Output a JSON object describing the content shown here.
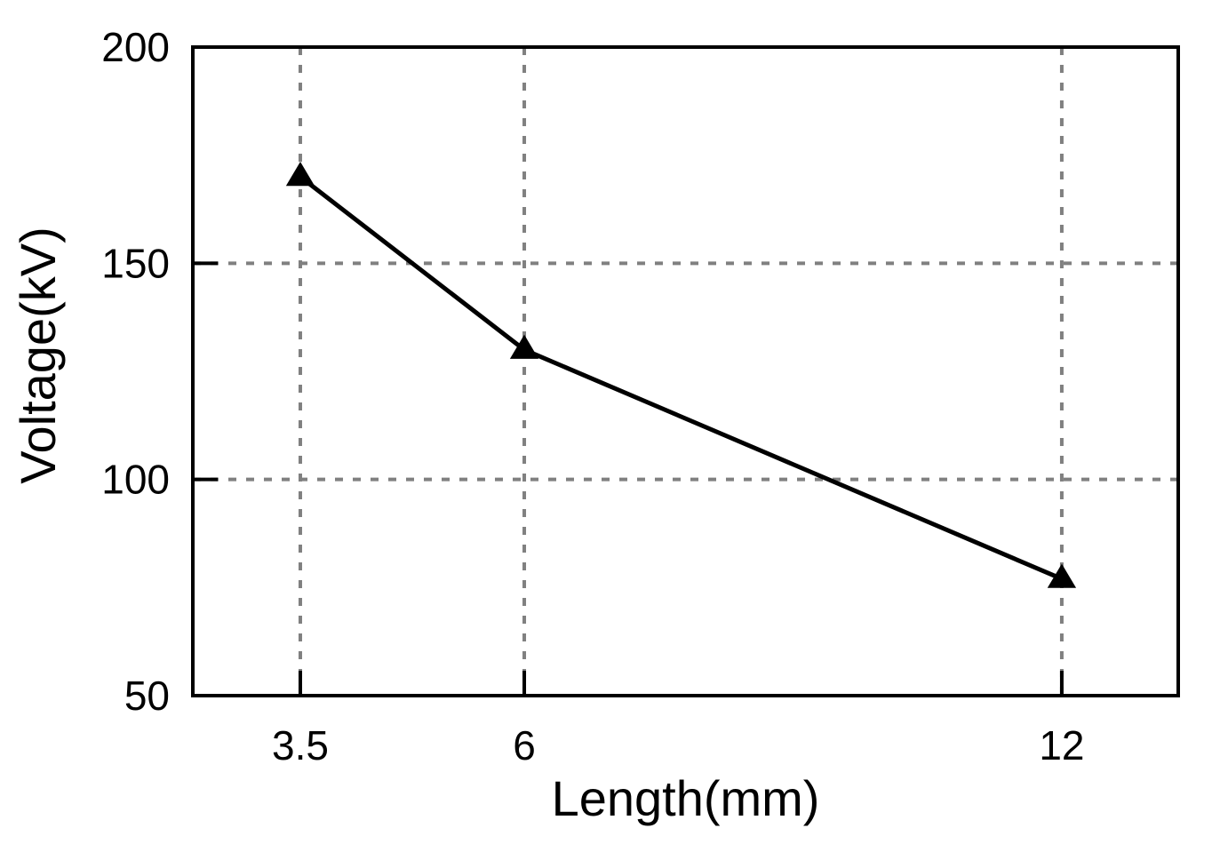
{
  "chart_data": {
    "type": "line",
    "title": "",
    "xlabel": "Length(mm)",
    "ylabel": "Voltage(kV)",
    "x_scale": "categorical-linear",
    "xlim": [
      2.3,
      13.3
    ],
    "ylim": [
      50,
      200
    ],
    "x_ticks": [
      {
        "value": 3.5,
        "label": "3.5"
      },
      {
        "value": 6,
        "label": "6"
      },
      {
        "value": 12,
        "label": "12"
      }
    ],
    "y_ticks": [
      {
        "value": 50,
        "label": "50"
      },
      {
        "value": 100,
        "label": "100"
      },
      {
        "value": 150,
        "label": "150"
      },
      {
        "value": 200,
        "label": "200"
      }
    ],
    "grid": true,
    "legend": "none",
    "series": [
      {
        "marker": "triangle",
        "color": "#000000",
        "x": [
          3.5,
          6,
          12
        ],
        "y": [
          170,
          130,
          77
        ]
      }
    ]
  }
}
